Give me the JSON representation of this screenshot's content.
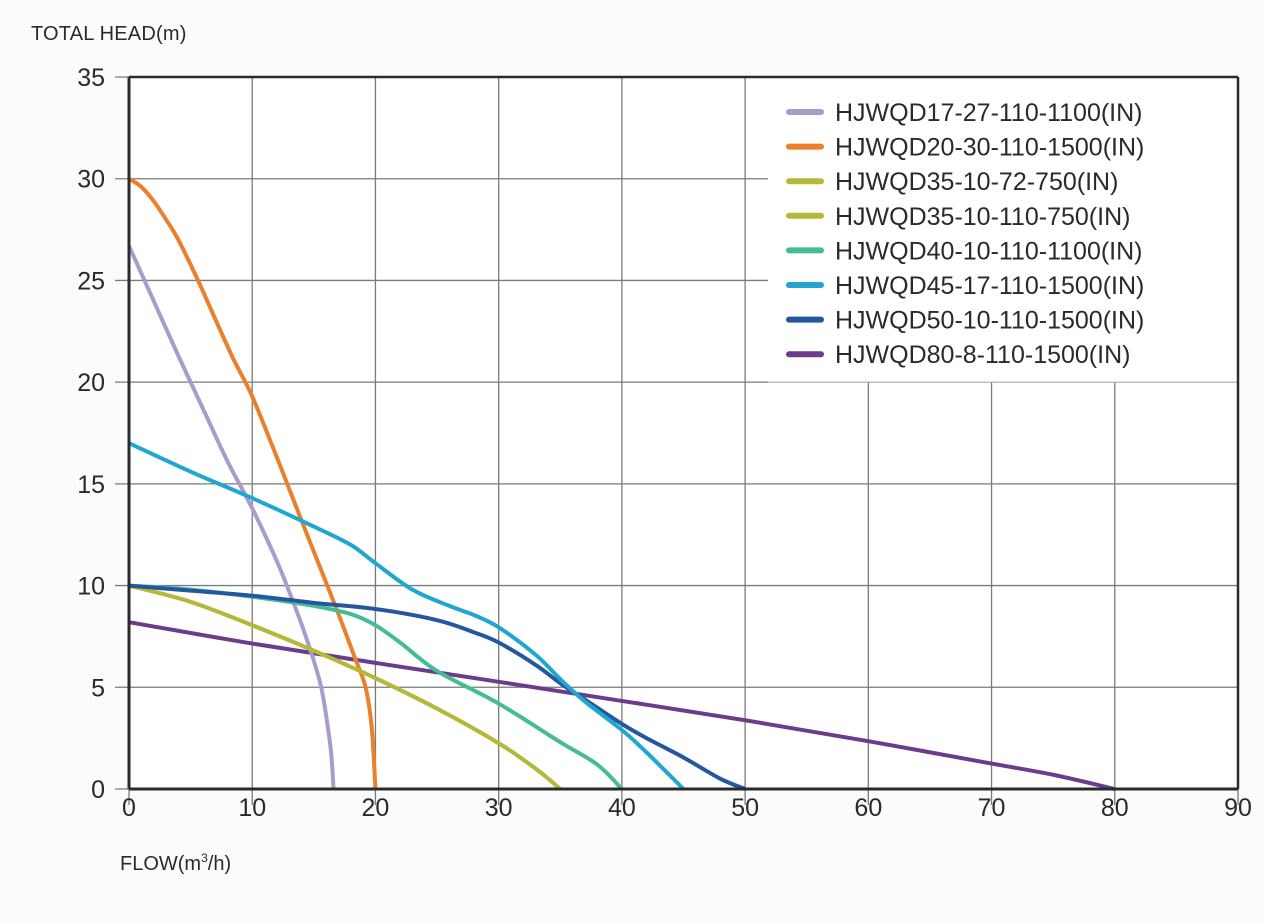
{
  "chart_data": {
    "type": "line",
    "title": "",
    "ylabel": "TOTAL HEAD(m)",
    "xlabel_prefix": "FLOW(m",
    "xlabel_sup": "3",
    "xlabel_suffix": "/h)",
    "xlim": [
      0,
      90
    ],
    "ylim": [
      0,
      35
    ],
    "xticks": [
      0,
      10,
      20,
      30,
      40,
      50,
      60,
      70,
      80,
      90
    ],
    "yticks": [
      0,
      5,
      10,
      15,
      20,
      25,
      30,
      35
    ],
    "grid": true,
    "legend_position": "top-right",
    "series": [
      {
        "name": "HJWQD17-27-110-1100(IN)",
        "color": "#a99ccd",
        "x": [
          0,
          2,
          4,
          6,
          8,
          10,
          12,
          13,
          14,
          15,
          15.6,
          16,
          16.4,
          16.6
        ],
        "y": [
          26.7,
          24.0,
          21.3,
          18.7,
          16.1,
          13.8,
          11.2,
          9.7,
          8.1,
          6.3,
          5.0,
          3.6,
          1.8,
          0
        ]
      },
      {
        "name": "HJWQD20-30-110-1500(IN)",
        "color": "#ec7f2a",
        "x": [
          0,
          1,
          2,
          3,
          4,
          5.6,
          7,
          8.5,
          10,
          12,
          14,
          15.5,
          17,
          18.3,
          19.2,
          19.7,
          20
        ],
        "y": [
          30,
          29.6,
          28.9,
          28.0,
          27.0,
          25.0,
          23.1,
          21.1,
          19.3,
          16.3,
          13.2,
          10.9,
          8.6,
          6.5,
          5.0,
          3.0,
          0
        ]
      },
      {
        "name": "HJWQD35-10-72-750(IN)",
        "color": "#b5b838",
        "x": [
          0,
          5,
          10,
          15,
          20,
          25,
          30,
          33,
          35
        ],
        "y": [
          10,
          9.2,
          8.05,
          6.8,
          5.45,
          3.95,
          2.25,
          1.0,
          0
        ]
      },
      {
        "name": "HJWQD35-10-110-750(IN)",
        "color": "#b5b838",
        "x": [
          0,
          5,
          10,
          15,
          20,
          25,
          30,
          33,
          35
        ],
        "y": [
          10,
          9.2,
          8.05,
          6.8,
          5.45,
          3.95,
          2.25,
          1.0,
          0
        ]
      },
      {
        "name": "HJWQD40-10-110-1100(IN)",
        "color": "#45bc96",
        "x": [
          0,
          5,
          10,
          15,
          18,
          20,
          22,
          25,
          30,
          35,
          38,
          40
        ],
        "y": [
          10,
          9.8,
          9.45,
          9.0,
          8.6,
          8.05,
          7.2,
          5.8,
          4.2,
          2.3,
          1.2,
          0
        ]
      },
      {
        "name": "HJWQD45-17-110-1500(IN)",
        "color": "#1fa7cf",
        "x": [
          0,
          5,
          10,
          15,
          18,
          20,
          23,
          26,
          28,
          30,
          33,
          35,
          37,
          40,
          42,
          45
        ],
        "y": [
          17,
          15.6,
          14.3,
          12.9,
          12.0,
          11.1,
          9.8,
          9.0,
          8.55,
          7.95,
          6.6,
          5.4,
          4.3,
          2.9,
          1.8,
          0
        ]
      },
      {
        "name": "HJWQD50-10-110-1500(IN)",
        "color": "#2457a0",
        "x": [
          0,
          5,
          10,
          15,
          20,
          25,
          28,
          30,
          33,
          35,
          37,
          40,
          42,
          45,
          48,
          50
        ],
        "y": [
          10,
          9.75,
          9.5,
          9.15,
          8.85,
          8.3,
          7.7,
          7.2,
          6.1,
          5.2,
          4.4,
          3.2,
          2.5,
          1.55,
          0.5,
          0
        ]
      },
      {
        "name": "HJWQD80-8-110-1500(IN)",
        "color": "#6c3c8c",
        "x": [
          0,
          10,
          20,
          30,
          40,
          50,
          60,
          70,
          75,
          80
        ],
        "y": [
          8.2,
          7.15,
          6.2,
          5.27,
          4.33,
          3.38,
          2.35,
          1.25,
          0.7,
          0
        ]
      }
    ]
  }
}
